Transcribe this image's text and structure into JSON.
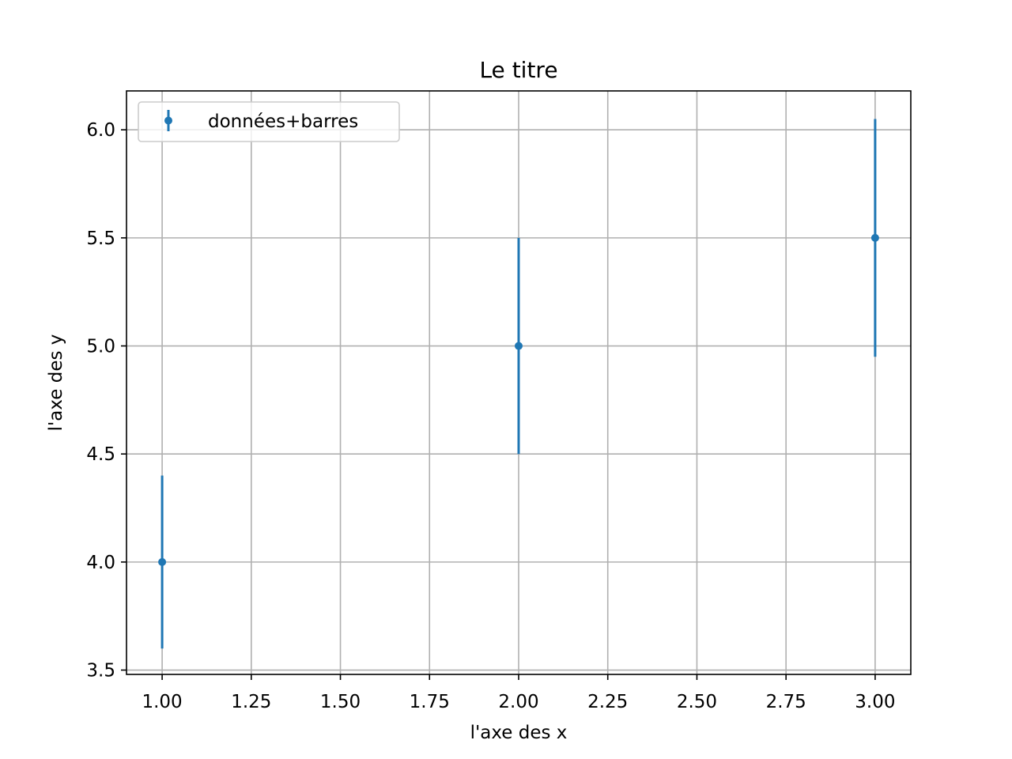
{
  "chart_data": {
    "type": "scatter",
    "title": "Le titre",
    "xlabel": "l'axe des x",
    "ylabel": "l'axe des y",
    "xlim": [
      0.9,
      3.1
    ],
    "ylim": [
      3.48,
      6.18
    ],
    "grid": true,
    "legend_position": "top-left",
    "x_ticks": [
      1.0,
      1.25,
      1.5,
      1.75,
      2.0,
      2.25,
      2.5,
      2.75,
      3.0
    ],
    "x_tick_labels": [
      "1.00",
      "1.25",
      "1.50",
      "1.75",
      "2.00",
      "2.25",
      "2.50",
      "2.75",
      "3.00"
    ],
    "y_ticks": [
      3.5,
      4.0,
      4.5,
      5.0,
      5.5,
      6.0
    ],
    "y_tick_labels": [
      "3.5",
      "4.0",
      "4.5",
      "5.0",
      "5.5",
      "6.0"
    ],
    "series": [
      {
        "name": "données+barres",
        "color": "#1f77b4",
        "marker": "circle",
        "error_bars": "vertical",
        "x": [
          1,
          2,
          3
        ],
        "y": [
          4.0,
          5.0,
          5.5
        ],
        "yerr": [
          0.4,
          0.5,
          0.55
        ]
      }
    ]
  }
}
